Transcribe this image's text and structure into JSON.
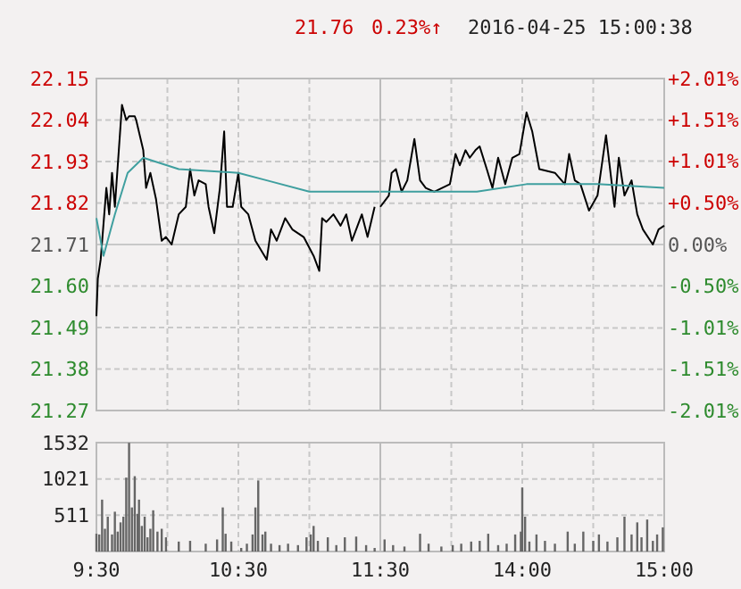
{
  "chart_data": [
    {
      "type": "line",
      "annotations": [
        "21.76",
        "0.23%↑",
        "2016-04-25 15:00:38"
      ],
      "xlim": [
        9.5,
        11.5
      ],
      "xticks": [
        {
          "value": 9.5,
          "label": null
        },
        {
          "value": 10,
          "label": null
        },
        {
          "value": 10.5,
          "label": null
        },
        {
          "value": 11,
          "label": null
        },
        {
          "value": 11.5,
          "label": null
        }
      ],
      "ylim": [
        21.27,
        22.15
      ],
      "yticks": [
        21.27,
        21.38,
        21.49,
        {
          "value": 21.6,
          "label": "21.60"
        },
        21.71,
        21.82,
        21.93,
        22.04,
        22.15
      ],
      "ref_lines": [
        {
          "axis": "y",
          "value": 21.71,
          "color": "#c8c8c8"
        }
      ],
      "tick_labels": "y",
      "grid": true,
      "marker": "none",
      "line_style": "solid",
      "series": [
        {
          "color": "#000000",
          "x": [
            9.5,
            9.51,
            9.53,
            9.57,
            9.59,
            9.61,
            9.63,
            9.68,
            9.71,
            9.73,
            9.77,
            9.78,
            9.83,
            9.85,
            9.88,
            9.92,
            9.96,
            9.99,
            10.03,
            10.08,
            10.13,
            10.16,
            10.19,
            10.22,
            10.27,
            10.29,
            10.33,
            10.37,
            10.4,
            10.42,
            10.46,
            10.5,
            10.52,
            10.57,
            10.62,
            10.7,
            10.73,
            10.77,
            10.83,
            10.88,
            10.96,
            11.03,
            11.07,
            11.09,
            11.12,
            11.17,
            11.22,
            11.26,
            11.3,
            11.37,
            11.41,
            11.46
          ],
          "values": [
            21.52,
            21.62,
            21.67,
            21.86,
            21.79,
            21.9,
            21.81,
            22.08,
            22.04,
            22.05,
            22.05,
            22.04,
            21.96,
            21.86,
            21.9,
            21.83,
            21.72,
            21.73,
            21.71,
            21.79,
            21.81,
            21.91,
            21.84,
            21.88,
            21.87,
            21.81,
            21.74,
            21.86,
            22.01,
            21.81,
            21.81,
            21.9,
            21.81,
            21.79,
            21.72,
            21.67,
            21.75,
            21.72,
            21.78,
            21.75,
            21.73,
            21.68,
            21.64,
            21.78,
            21.77,
            21.79,
            21.76,
            21.79,
            21.72,
            21.79,
            21.73,
            21.81
          ]
        },
        {
          "color": "#3f9f9f",
          "x": [
            9.5,
            9.55,
            9.63,
            9.72,
            9.83,
            10.08,
            10.5,
            10.7,
            11,
            11.5
          ],
          "values": [
            21.78,
            21.68,
            21.79,
            21.9,
            21.94,
            21.91,
            21.9,
            21.88,
            21.85,
            21.85
          ]
        }
      ]
    },
    {
      "type": "line",
      "xlim": [
        13,
        15
      ],
      "xticks": [
        {
          "value": 13,
          "label": null
        },
        {
          "value": 13.5,
          "label": null
        },
        {
          "value": 14,
          "label": null
        },
        {
          "value": 14.5,
          "label": null
        },
        {
          "value": 15,
          "label": null
        }
      ],
      "ylim": [
        21.27,
        22.15
      ],
      "y2lim": [
        -2.01,
        2.01
      ],
      "y2ticks": [
        {
          "value": -2.01,
          "label": "-2.01%"
        },
        {
          "value": -1.51,
          "label": "-1.51%"
        },
        {
          "value": -1.01,
          "label": "-1.01%"
        },
        {
          "value": -0.5,
          "label": "-0.50%"
        },
        {
          "value": 0,
          "label": "0.00%"
        },
        {
          "value": 0.5,
          "label": "+0.50%"
        },
        {
          "value": 1.01,
          "label": "+1.01%"
        },
        {
          "value": 1.51,
          "label": "+1.51%"
        },
        {
          "value": 2.01,
          "label": "+2.01%"
        }
      ],
      "ref_lines": [
        {
          "axis": "y2",
          "value": 0,
          "color": "#c8c8c8"
        }
      ],
      "tick_labels": "y",
      "grid": true,
      "marker": "none",
      "line_style": "solid",
      "series": [
        {
          "color": "#000000",
          "x": [
            13,
            13.06,
            13.08,
            13.11,
            13.15,
            13.19,
            13.24,
            13.28,
            13.32,
            13.38,
            13.49,
            13.53,
            13.56,
            13.6,
            13.63,
            13.67,
            13.7,
            13.75,
            13.79,
            13.83,
            13.88,
            13.93,
            13.98,
            14.03,
            14.07,
            14.12,
            14.23,
            14.3,
            14.33,
            14.37,
            14.41,
            14.47,
            14.53,
            14.59,
            14.65,
            14.68,
            14.72,
            14.77,
            14.81,
            14.85,
            14.92,
            14.96,
            15
          ],
          "values": [
            21.81,
            21.84,
            21.9,
            21.91,
            21.85,
            21.88,
            21.99,
            21.88,
            21.86,
            21.85,
            21.87,
            21.95,
            21.92,
            21.96,
            21.94,
            21.96,
            21.97,
            21.91,
            21.86,
            21.94,
            21.87,
            21.94,
            21.95,
            22.06,
            22.01,
            21.91,
            21.9,
            21.87,
            21.95,
            21.88,
            21.87,
            21.8,
            21.84,
            22.0,
            21.81,
            21.94,
            21.84,
            21.88,
            21.79,
            21.75,
            21.71,
            21.75,
            21.76
          ]
        },
        {
          "color": "#3f9f9f",
          "x": [
            13,
            13.68,
            14.03,
            14.53,
            15
          ],
          "values": [
            21.85,
            21.85,
            21.87,
            21.87,
            21.86
          ]
        }
      ]
    },
    {
      "type": "bar",
      "xlim": [
        9.5,
        11.5
      ],
      "xticks": [
        {
          "value": 9.5,
          "label": "9:30"
        },
        {
          "value": 10,
          "label": null
        },
        {
          "value": 10.5,
          "label": "10:30"
        },
        {
          "value": 11,
          "label": null
        },
        {
          "value": 11.5,
          "label": "11:30"
        }
      ],
      "ylim": [
        0,
        1532
      ],
      "yticks": [
        511,
        1021,
        1532
      ],
      "grid": true,
      "series": [
        {
          "color": "#666666",
          "x": [
            9.5,
            9.52,
            9.54,
            9.56,
            9.58,
            9.61,
            9.63,
            9.65,
            9.67,
            9.69,
            9.71,
            9.73,
            9.75,
            9.77,
            9.79,
            9.8,
            9.82,
            9.84,
            9.86,
            9.88,
            9.9,
            9.93,
            9.96,
            9.99,
            10.08,
            10.16,
            10.27,
            10.35,
            10.39,
            10.41,
            10.45,
            10.52,
            10.56,
            10.6,
            10.62,
            10.64,
            10.67,
            10.69,
            10.73,
            10.79,
            10.85,
            10.92,
            10.98,
            11.01,
            11.03,
            11.06,
            11.13,
            11.19,
            11.25,
            11.33,
            11.4,
            11.46
          ],
          "values": [
            250,
            240,
            730,
            320,
            490,
            240,
            560,
            280,
            410,
            490,
            1040,
            1530,
            620,
            1060,
            530,
            730,
            360,
            490,
            200,
            320,
            580,
            280,
            320,
            200,
            140,
            150,
            110,
            170,
            620,
            250,
            140,
            50,
            110,
            240,
            620,
            1000,
            240,
            280,
            110,
            90,
            110,
            90,
            200,
            240,
            360,
            150,
            200,
            90,
            200,
            210,
            90,
            50
          ]
        }
      ]
    },
    {
      "type": "bar",
      "xlim": [
        13,
        15
      ],
      "xticks": [
        {
          "value": 13,
          "label": null
        },
        {
          "value": 13.5,
          "label": null
        },
        {
          "value": 14,
          "label": "14:00"
        },
        {
          "value": 14.5,
          "label": null
        },
        {
          "value": 15,
          "label": "15:00"
        }
      ],
      "ylim": [
        0,
        1532
      ],
      "yticks": [
        511,
        1021,
        1532
      ],
      "tick_labels": "x",
      "grid": true,
      "series": [
        {
          "color": "#666666",
          "x": [
            13.03,
            13.09,
            13.17,
            13.28,
            13.34,
            13.43,
            13.51,
            13.57,
            13.64,
            13.7,
            13.76,
            13.83,
            13.89,
            13.95,
            13.99,
            14,
            14.02,
            14.05,
            14.1,
            14.16,
            14.23,
            14.32,
            14.37,
            14.43,
            14.5,
            14.54,
            14.6,
            14.67,
            14.72,
            14.77,
            14.81,
            14.84,
            14.88,
            14.92,
            14.95,
            14.99
          ],
          "values": [
            170,
            90,
            70,
            250,
            110,
            70,
            90,
            110,
            140,
            150,
            250,
            90,
            110,
            240,
            280,
            900,
            490,
            140,
            240,
            150,
            110,
            280,
            110,
            280,
            150,
            240,
            140,
            200,
            490,
            240,
            410,
            200,
            450,
            150,
            240,
            340
          ]
        }
      ]
    }
  ]
}
